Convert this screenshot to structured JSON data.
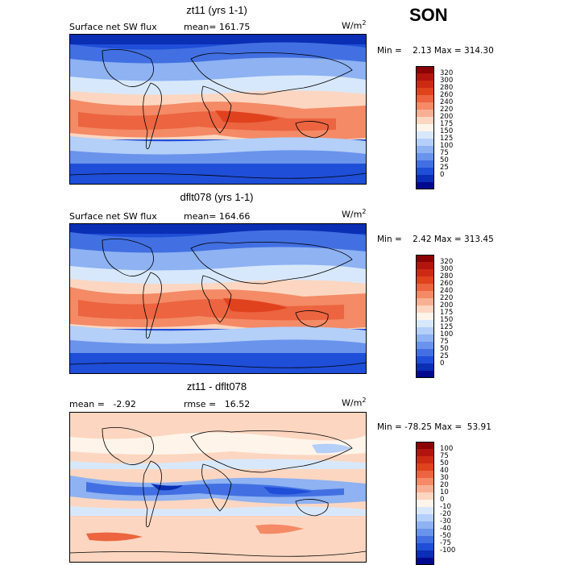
{
  "season": "SON",
  "units": {
    "base": "W/m",
    "sup": "2"
  },
  "panels": [
    {
      "title": "zt11 (yrs 1-1)",
      "left_text": "Surface net SW flux",
      "right_text": "mean= 161.75",
      "min_max": "Min =    2.13 Max = 314.30",
      "colorbar": {
        "labels": [
          "320",
          "300",
          "280",
          "260",
          "240",
          "220",
          "200",
          "175",
          "150",
          "125",
          "100",
          "75",
          "50",
          "25",
          "0"
        ],
        "colors": [
          "#8b0000",
          "#b2140e",
          "#cc2a14",
          "#e0421e",
          "#ec6440",
          "#f48a66",
          "#f8b094",
          "#fcd6c0",
          "#fff4ea",
          "#d8e8fc",
          "#b4cff8",
          "#8eb2f2",
          "#6a93ec",
          "#4270e2",
          "#1f4ed8",
          "#0a2eb4",
          "#000a8c"
        ]
      }
    },
    {
      "title": "dflt078 (yrs 1-1)",
      "left_text": "Surface net SW flux",
      "right_text": "mean= 164.66",
      "min_max": "Min =    2.42 Max = 313.45",
      "colorbar": {
        "labels": [
          "320",
          "300",
          "280",
          "260",
          "240",
          "220",
          "200",
          "175",
          "150",
          "125",
          "100",
          "75",
          "50",
          "25",
          "0"
        ],
        "colors": [
          "#8b0000",
          "#b2140e",
          "#cc2a14",
          "#e0421e",
          "#ec6440",
          "#f48a66",
          "#f8b094",
          "#fcd6c0",
          "#fff4ea",
          "#d8e8fc",
          "#b4cff8",
          "#8eb2f2",
          "#6a93ec",
          "#4270e2",
          "#1f4ed8",
          "#0a2eb4",
          "#000a8c"
        ]
      }
    },
    {
      "title": "zt11 - dflt078",
      "left_text": "mean =   -2.92",
      "right_text": "rmse =   16.52",
      "min_max": "Min = -78.25 Max =  53.91",
      "colorbar": {
        "labels": [
          "100",
          "75",
          "50",
          "40",
          "30",
          "20",
          "10",
          "0",
          "-10",
          "-20",
          "-30",
          "-40",
          "-50",
          "-75",
          "-100"
        ],
        "colors": [
          "#8b0000",
          "#b2140e",
          "#cc2a14",
          "#e0421e",
          "#ec6440",
          "#f48a66",
          "#f8b094",
          "#fcd6c0",
          "#fff4ea",
          "#d8e8fc",
          "#b4cff8",
          "#8eb2f2",
          "#6a93ec",
          "#4270e2",
          "#1f4ed8",
          "#0a2eb4",
          "#000a8c"
        ]
      }
    }
  ]
}
